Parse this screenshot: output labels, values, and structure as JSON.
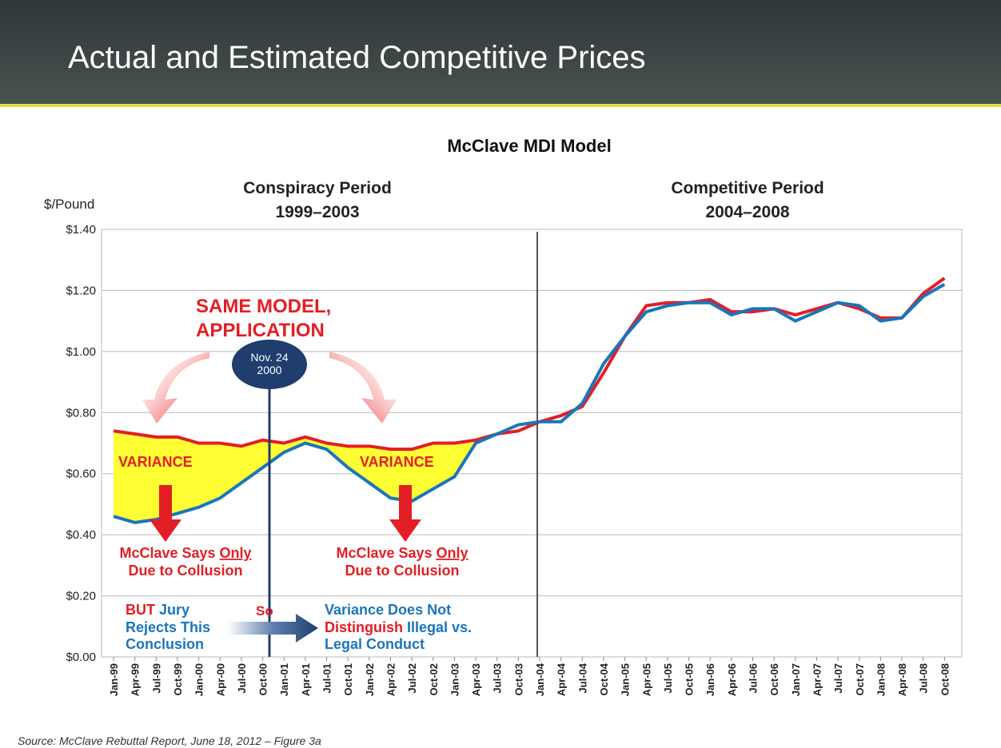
{
  "slide": {
    "title": "Actual and Estimated Competitive Prices",
    "source": "Source: McClave Rebuttal Report, June 18, 2012 – Figure 3a"
  },
  "chart_data": {
    "type": "line",
    "title": "McClave MDI Model",
    "y_label": "$/Pound",
    "periods": [
      [
        "Conspiracy Period",
        "1999–2003"
      ],
      [
        "Competitive Period",
        "2004–2008"
      ]
    ],
    "categories": [
      "Jan-99",
      "Apr-99",
      "Jul-99",
      "Oct-99",
      "Jan-00",
      "Apr-00",
      "Jul-00",
      "Oct-00",
      "Jan-01",
      "Apr-01",
      "Jul-01",
      "Oct-01",
      "Jan-02",
      "Apr-02",
      "Jul-02",
      "Oct-02",
      "Jan-03",
      "Apr-03",
      "Jul-03",
      "Oct-03",
      "Jan-04",
      "Apr-04",
      "Jul-04",
      "Oct-04",
      "Jan-05",
      "Apr-05",
      "Jul-05",
      "Oct-05",
      "Jan-06",
      "Apr-06",
      "Jul-06",
      "Oct-06",
      "Jan-07",
      "Apr-07",
      "Jul-07",
      "Oct-07",
      "Jan-08",
      "Apr-08",
      "Jul-08",
      "Oct-08"
    ],
    "series": [
      {
        "color": "#e31e24",
        "values": [
          0.74,
          0.73,
          0.72,
          0.72,
          0.7,
          0.7,
          0.69,
          0.71,
          0.7,
          0.72,
          0.7,
          0.69,
          0.69,
          0.68,
          0.68,
          0.7,
          0.7,
          0.71,
          0.73,
          0.74,
          0.77,
          0.79,
          0.82,
          0.93,
          1.05,
          1.15,
          1.16,
          1.16,
          1.17,
          1.13,
          1.13,
          1.14,
          1.12,
          1.14,
          1.16,
          1.14,
          1.11,
          1.11,
          1.19,
          1.24
        ]
      },
      {
        "color": "#1b75bb",
        "values": [
          0.46,
          0.44,
          0.45,
          0.47,
          0.49,
          0.52,
          0.57,
          0.62,
          0.67,
          0.7,
          0.68,
          0.62,
          0.57,
          0.52,
          0.51,
          0.55,
          0.59,
          0.7,
          0.73,
          0.76,
          0.77,
          0.77,
          0.83,
          0.96,
          1.05,
          1.13,
          1.15,
          1.16,
          1.16,
          1.12,
          1.14,
          1.14,
          1.1,
          1.13,
          1.16,
          1.15,
          1.1,
          1.11,
          1.18,
          1.22
        ]
      }
    ],
    "variance_color": "#ffff33",
    "ylim": [
      0,
      1.4
    ],
    "yticks": [
      {
        "value": 0,
        "label": "$0.00"
      },
      {
        "value": 0.2,
        "label": "$0.20"
      },
      {
        "value": 0.4,
        "label": "$0.40"
      },
      {
        "value": 0.6,
        "label": "$0.60"
      },
      {
        "value": 0.8,
        "label": "$0.80"
      },
      {
        "value": 1.0,
        "label": "$1.00"
      },
      {
        "value": 1.2,
        "label": "$1.20"
      },
      {
        "value": 1.4,
        "label": "$1.40"
      }
    ],
    "grid": true,
    "annotations": {
      "same_model": [
        "SAME MODEL,",
        "APPLICATION"
      ],
      "nov24": [
        "Nov. 24",
        "2000"
      ],
      "variance": [
        "VARIANCE",
        "VARIANCE"
      ],
      "mcclave_1": [
        "McClave Says ",
        "Only",
        "Due to Collusion"
      ],
      "mcclave_2": [
        "McClave Says ",
        "Only",
        "Due to Collusion"
      ],
      "jury": [
        "BUT",
        "Jury",
        "Rejects This",
        "Conclusion"
      ],
      "so": "So",
      "distinguish": [
        "Variance Does Not",
        "Distinguish",
        "Illegal vs.",
        "Legal Conduct"
      ]
    }
  }
}
